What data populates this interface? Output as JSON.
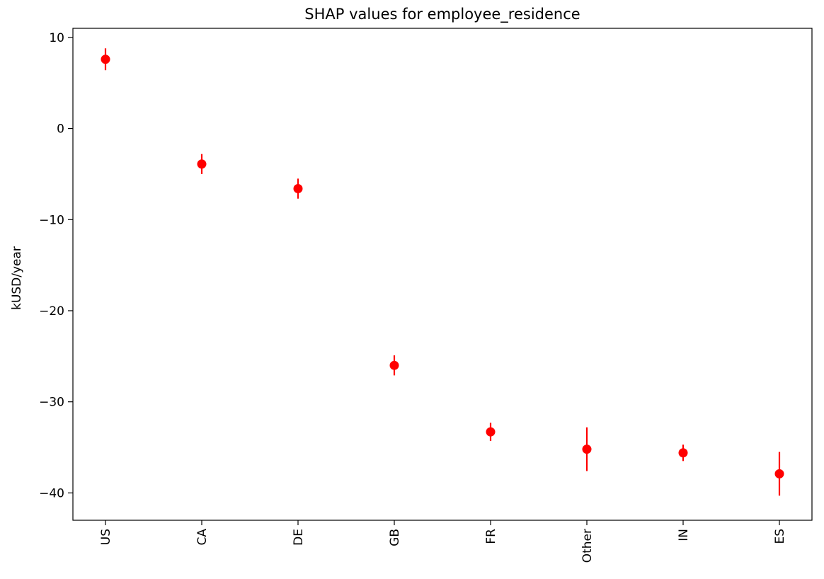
{
  "chart_data": {
    "type": "scatter",
    "title": "SHAP values for employee_residence",
    "xlabel": "",
    "ylabel": "kUSD/year",
    "categories": [
      "US",
      "CA",
      "DE",
      "GB",
      "FR",
      "Other",
      "IN",
      "ES"
    ],
    "series": [
      {
        "values": [
          7.6,
          -3.9,
          -6.6,
          -26.0,
          -33.3,
          -35.2,
          -35.6,
          -37.9
        ],
        "error": [
          1.2,
          1.1,
          1.1,
          1.1,
          1.0,
          2.4,
          0.9,
          2.4
        ]
      }
    ],
    "ylim": [
      -43,
      11
    ],
    "yticks": [
      10,
      0,
      -10,
      -20,
      -30,
      -40
    ],
    "ytick_labels": [
      "10",
      "0",
      "−10",
      "−20",
      "−30",
      "−40"
    ],
    "x_tick_rotation": "vertical",
    "grid": false,
    "legend": "none",
    "colors": {
      "marker": "#ff0000",
      "axes": "#000000",
      "background": "#ffffff"
    }
  }
}
